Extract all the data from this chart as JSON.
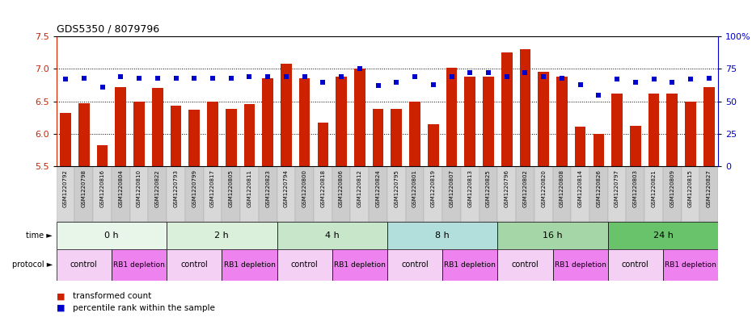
{
  "title": "GDS5350 / 8079796",
  "samples": [
    "GSM1220792",
    "GSM1220798",
    "GSM1220816",
    "GSM1220804",
    "GSM1220810",
    "GSM1220822",
    "GSM1220793",
    "GSM1220799",
    "GSM1220817",
    "GSM1220805",
    "GSM1220811",
    "GSM1220823",
    "GSM1220794",
    "GSM1220800",
    "GSM1220818",
    "GSM1220806",
    "GSM1220812",
    "GSM1220824",
    "GSM1220795",
    "GSM1220801",
    "GSM1220819",
    "GSM1220807",
    "GSM1220813",
    "GSM1220825",
    "GSM1220796",
    "GSM1220802",
    "GSM1220820",
    "GSM1220808",
    "GSM1220814",
    "GSM1220826",
    "GSM1220797",
    "GSM1220803",
    "GSM1220821",
    "GSM1220809",
    "GSM1220815",
    "GSM1220827"
  ],
  "bar_values": [
    6.32,
    6.47,
    5.83,
    6.72,
    6.5,
    6.71,
    6.44,
    6.37,
    6.5,
    6.39,
    6.46,
    6.86,
    7.08,
    6.86,
    6.18,
    6.88,
    7.0,
    6.38,
    6.39,
    6.5,
    6.15,
    7.02,
    6.88,
    6.88,
    7.25,
    7.3,
    6.96,
    6.88,
    6.11,
    6.0,
    6.62,
    6.13,
    6.62,
    6.62,
    6.5,
    6.72
  ],
  "dot_values": [
    67,
    68,
    61,
    69,
    68,
    68,
    68,
    68,
    68,
    68,
    69,
    69,
    69,
    69,
    65,
    69,
    75,
    62,
    65,
    69,
    63,
    69,
    72,
    72,
    69,
    72,
    69,
    68,
    63,
    55,
    67,
    65,
    67,
    65,
    67,
    68
  ],
  "ylim_left": [
    5.5,
    7.5
  ],
  "ylim_right": [
    0,
    100
  ],
  "yticks_left": [
    5.5,
    6.0,
    6.5,
    7.0,
    7.5
  ],
  "yticks_right": [
    0,
    25,
    50,
    75,
    100
  ],
  "time_groups": [
    {
      "label": "0 h",
      "start": 0,
      "end": 6,
      "color": "#e8f5e9"
    },
    {
      "label": "2 h",
      "start": 6,
      "end": 12,
      "color": "#daf0da"
    },
    {
      "label": "4 h",
      "start": 12,
      "end": 18,
      "color": "#c8e6c9"
    },
    {
      "label": "8 h",
      "start": 18,
      "end": 24,
      "color": "#b2dfdb"
    },
    {
      "label": "16 h",
      "start": 24,
      "end": 30,
      "color": "#a5d6a7"
    },
    {
      "label": "24 h",
      "start": 30,
      "end": 36,
      "color": "#69c36b"
    }
  ],
  "protocol_groups": [
    {
      "label": "control",
      "start": 0,
      "end": 3,
      "color": "#f5d0f5"
    },
    {
      "label": "RB1 depletion",
      "start": 3,
      "end": 6,
      "color": "#ee82ee"
    },
    {
      "label": "control",
      "start": 6,
      "end": 9,
      "color": "#f5d0f5"
    },
    {
      "label": "RB1 depletion",
      "start": 9,
      "end": 12,
      "color": "#ee82ee"
    },
    {
      "label": "control",
      "start": 12,
      "end": 15,
      "color": "#f5d0f5"
    },
    {
      "label": "RB1 depletion",
      "start": 15,
      "end": 18,
      "color": "#ee82ee"
    },
    {
      "label": "control",
      "start": 18,
      "end": 21,
      "color": "#f5d0f5"
    },
    {
      "label": "RB1 depletion",
      "start": 21,
      "end": 24,
      "color": "#ee82ee"
    },
    {
      "label": "control",
      "start": 24,
      "end": 27,
      "color": "#f5d0f5"
    },
    {
      "label": "RB1 depletion",
      "start": 27,
      "end": 30,
      "color": "#ee82ee"
    },
    {
      "label": "control",
      "start": 30,
      "end": 33,
      "color": "#f5d0f5"
    },
    {
      "label": "RB1 depletion",
      "start": 33,
      "end": 36,
      "color": "#ee82ee"
    }
  ],
  "bar_color": "#cc2200",
  "dot_color": "#0000cc",
  "grid_color": "#000000",
  "bg_color": "#ffffff",
  "left_axis_color": "#cc2200",
  "right_axis_color": "#0000cc",
  "sample_bg_color": "#d8d8d8",
  "sample_border_color": "#aaaaaa"
}
